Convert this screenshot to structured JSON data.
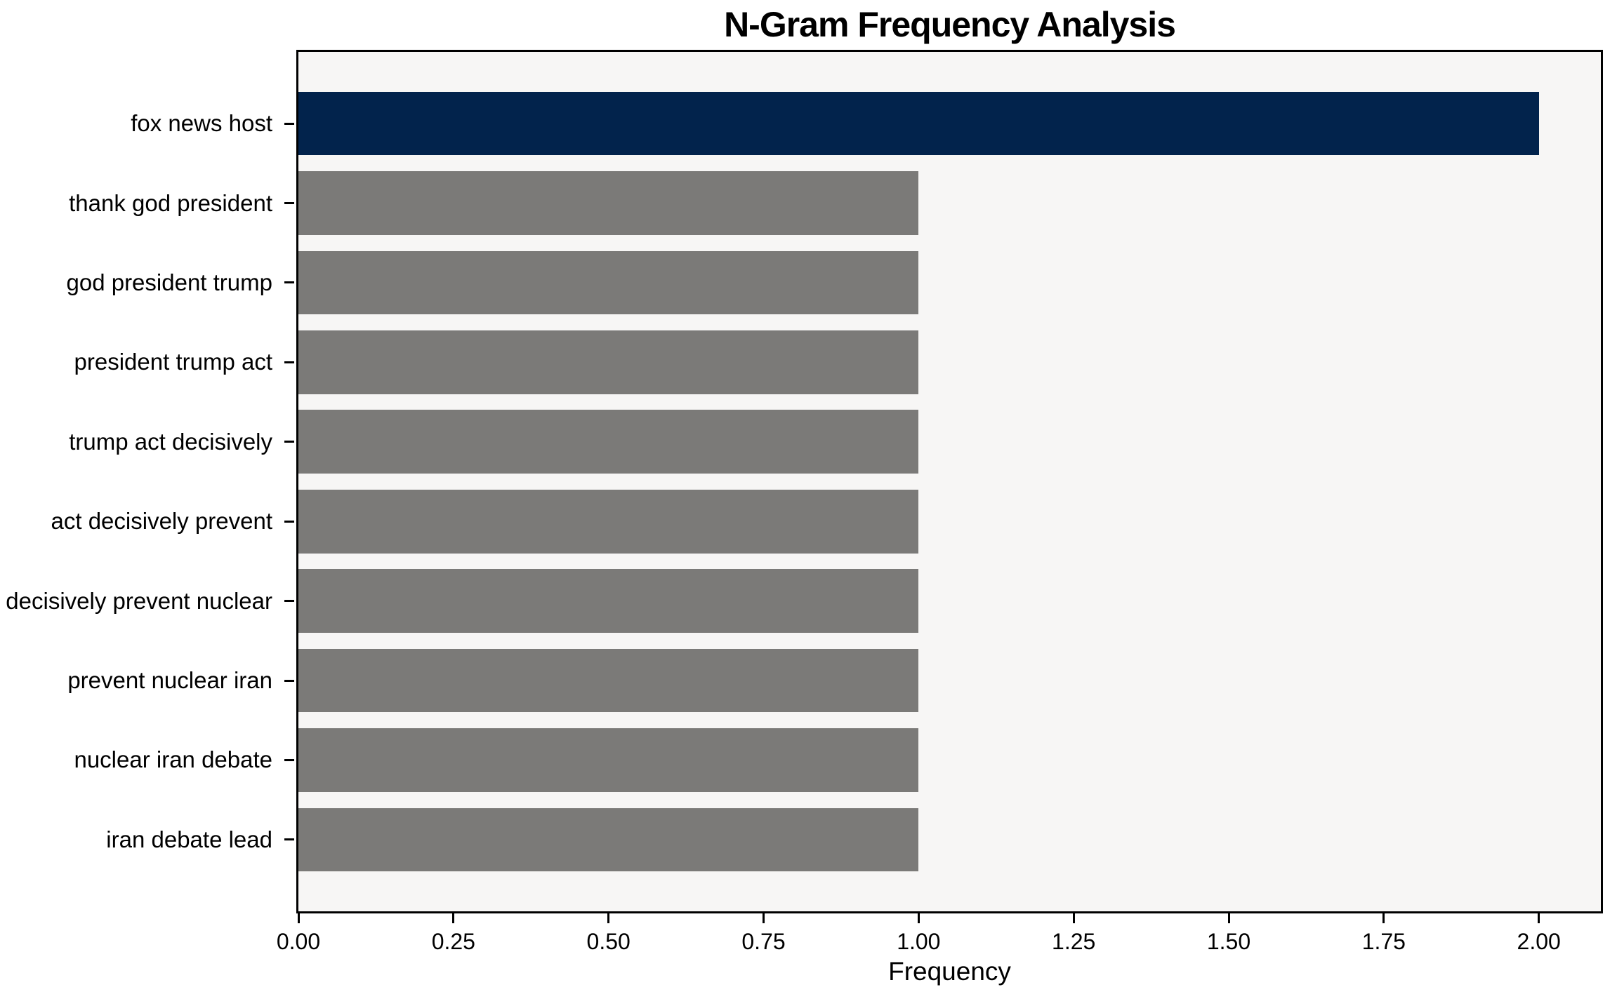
{
  "chart_data": {
    "type": "bar",
    "orientation": "horizontal",
    "title": "N-Gram Frequency Analysis",
    "xlabel": "Frequency",
    "ylabel": "",
    "categories": [
      "fox news host",
      "thank god president",
      "god president trump",
      "president trump act",
      "trump act decisively",
      "act decisively prevent",
      "decisively prevent nuclear",
      "prevent nuclear iran",
      "nuclear iran debate",
      "iran debate lead"
    ],
    "values": [
      2,
      1,
      1,
      1,
      1,
      1,
      1,
      1,
      1,
      1
    ],
    "bar_colors": [
      "#02234c",
      "#7b7a78",
      "#7b7a78",
      "#7b7a78",
      "#7b7a78",
      "#7b7a78",
      "#7b7a78",
      "#7b7a78",
      "#7b7a78",
      "#7b7a78"
    ],
    "highlight_index": 0,
    "xlim": [
      0,
      2.1
    ],
    "xtick_values": [
      0,
      0.25,
      0.5,
      0.75,
      1.0,
      1.25,
      1.5,
      1.75,
      2.0
    ],
    "xtick_labels": [
      "0.00",
      "0.25",
      "0.50",
      "0.75",
      "1.00",
      "1.25",
      "1.50",
      "1.75",
      "2.00"
    ],
    "grid": false,
    "legend": null,
    "colors": {
      "plot_background": "#f7f6f5",
      "figure_background": "#ffffff",
      "axis": "#000000",
      "text": "#000000"
    }
  }
}
